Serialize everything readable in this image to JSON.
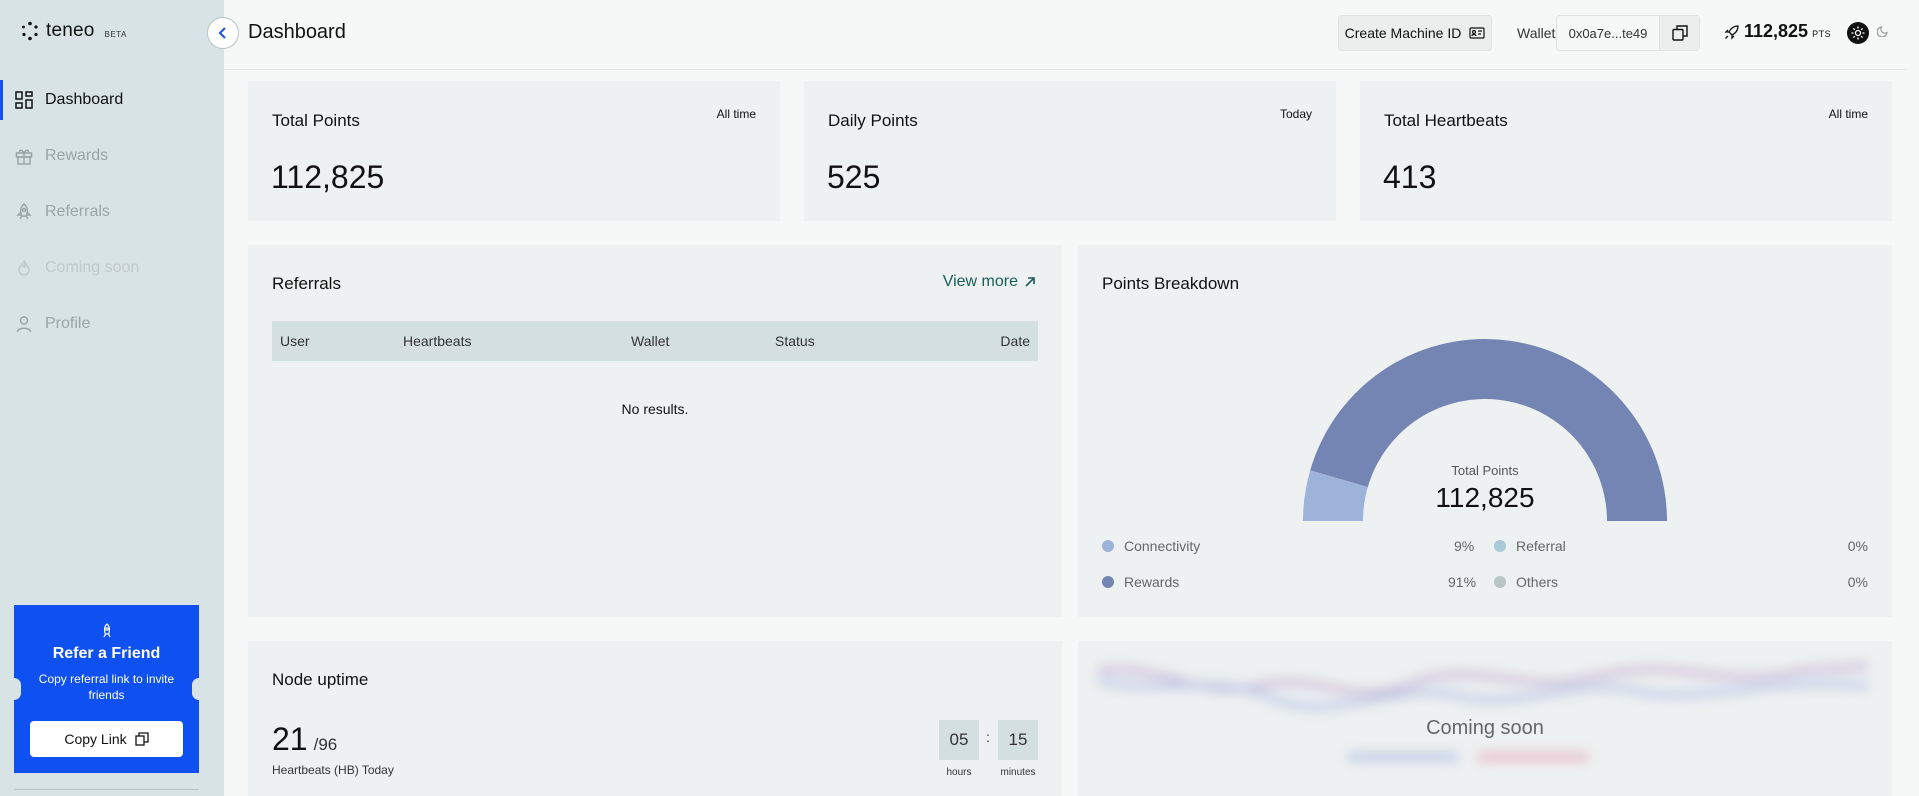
{
  "app": {
    "logo_text": "teneo",
    "logo_badge": "BETA"
  },
  "sidebar": {
    "items": [
      {
        "label": "Dashboard",
        "icon": "dashboard-icon",
        "state": "active"
      },
      {
        "label": "Rewards",
        "icon": "gift-icon",
        "state": "inactive"
      },
      {
        "label": "Referrals",
        "icon": "rocket-icon",
        "state": "inactive"
      },
      {
        "label": "Coming soon",
        "icon": "flame-icon",
        "state": "disabled"
      },
      {
        "label": "Profile",
        "icon": "user-icon",
        "state": "inactive"
      }
    ],
    "refer_card": {
      "title": "Refer a Friend",
      "subtitle": "Copy referral link to invite friends",
      "button_label": "Copy Link",
      "accent": "#0f50f0"
    }
  },
  "header": {
    "title": "Dashboard",
    "create_button_label": "Create Machine ID",
    "wallet_label": "Wallet",
    "wallet_address": "0x0a7e...te49",
    "points_value": "112,825",
    "points_unit": "PTS"
  },
  "stats": [
    {
      "title": "Total Points",
      "badge": "All time",
      "value": "112,825"
    },
    {
      "title": "Daily Points",
      "badge": "Today",
      "value": "525"
    },
    {
      "title": "Total Heartbeats",
      "badge": "All time",
      "value": "413"
    }
  ],
  "referrals": {
    "title": "Referrals",
    "view_more_label": "View more",
    "columns": [
      "User",
      "Heartbeats",
      "Wallet",
      "Status",
      "Date"
    ],
    "empty_text": "No results."
  },
  "points_breakdown": {
    "title": "Points Breakdown",
    "center_label": "Total Points",
    "center_value": "112,825",
    "legend": [
      {
        "label": "Connectivity",
        "value": "9%",
        "color": "#9db3d9"
      },
      {
        "label": "Referral",
        "value": "0%",
        "color": "#a8cad8"
      },
      {
        "label": "Rewards",
        "value": "91%",
        "color": "#7485b3"
      },
      {
        "label": "Others",
        "value": "0%",
        "color": "#b9c4c4"
      }
    ]
  },
  "chart_data": {
    "type": "pie",
    "categories": [
      "Connectivity",
      "Referral",
      "Rewards",
      "Others"
    ],
    "values": [
      9,
      0,
      91,
      0
    ],
    "title": "Points Breakdown"
  },
  "node_uptime": {
    "title": "Node uptime",
    "value": "21",
    "total": "/96",
    "subtitle": "Heartbeats (HB) Today",
    "hours": "05",
    "hours_label": "hours",
    "separator": ":",
    "minutes": "15",
    "minutes_label": "minutes"
  },
  "coming_soon_panel": {
    "text": "Coming soon"
  }
}
